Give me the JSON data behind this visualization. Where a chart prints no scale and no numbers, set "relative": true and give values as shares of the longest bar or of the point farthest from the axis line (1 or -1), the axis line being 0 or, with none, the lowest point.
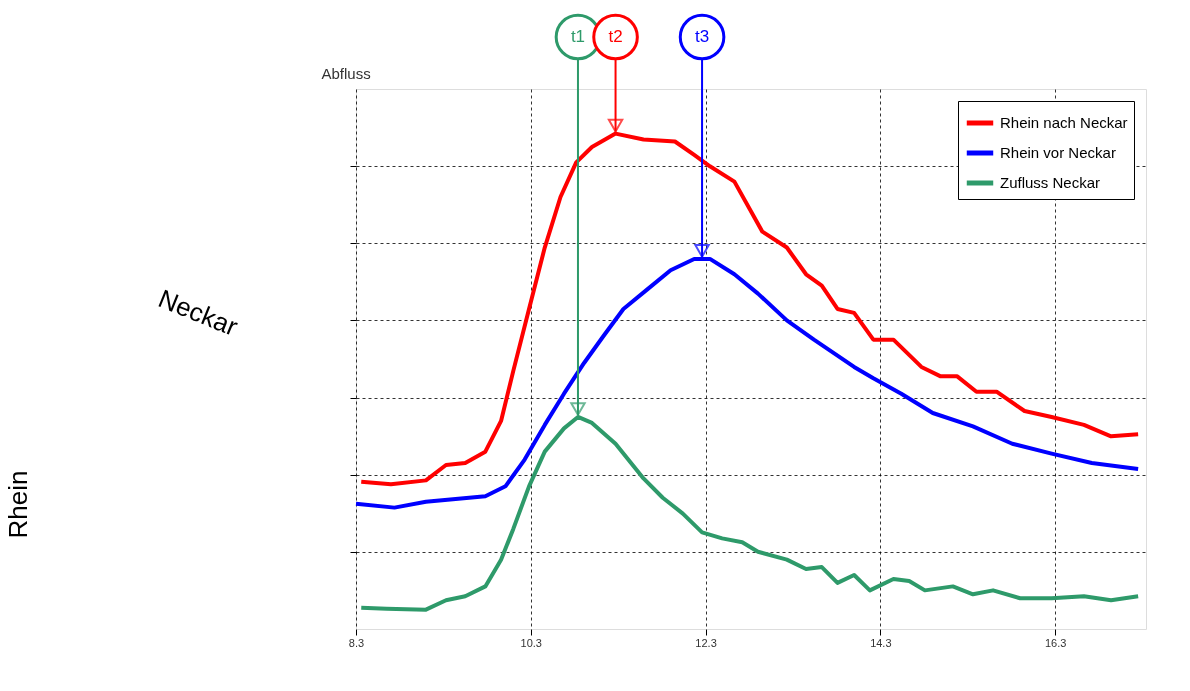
{
  "chart_data": {
    "type": "line",
    "relative": true,
    "ylabel": "Abfluss",
    "xlim": [
      8.3,
      17.34
    ],
    "xticks": [
      8.3,
      10.3,
      12.3,
      14.3,
      16.3
    ],
    "grid": true,
    "legend": "top right",
    "line_style": "solid",
    "marker": "none",
    "series": [
      {
        "name": "Rhein nach Neckar",
        "color": "#ff0000",
        "x": [
          8.36,
          8.7,
          9.1,
          9.33,
          9.55,
          9.78,
          9.96,
          10.1,
          10.28,
          10.46,
          10.64,
          10.82,
          11.0,
          11.27,
          11.59,
          11.95,
          12.17,
          12.35,
          12.63,
          12.95,
          13.23,
          13.45,
          13.63,
          13.81,
          14.0,
          14.22,
          14.45,
          14.77,
          14.99,
          15.18,
          15.4,
          15.63,
          15.95,
          16.26,
          16.63,
          16.94,
          17.25
        ],
        "values": [
          0.297,
          0.292,
          0.3,
          0.331,
          0.335,
          0.358,
          0.42,
          0.521,
          0.646,
          0.77,
          0.872,
          0.942,
          0.973,
          1.0,
          0.988,
          0.984,
          0.957,
          0.934,
          0.903,
          0.802,
          0.77,
          0.716,
          0.693,
          0.646,
          0.638,
          0.584,
          0.584,
          0.529,
          0.51,
          0.51,
          0.479,
          0.479,
          0.44,
          0.428,
          0.412,
          0.389,
          0.393
        ]
      },
      {
        "name": "Rhein vor Neckar",
        "color": "#0000ff",
        "x": [
          8.3,
          8.74,
          9.1,
          9.78,
          10.01,
          10.23,
          10.46,
          10.68,
          10.91,
          11.13,
          11.36,
          11.63,
          11.9,
          12.17,
          12.35,
          12.63,
          12.9,
          13.23,
          13.54,
          14.0,
          14.22,
          14.54,
          14.9,
          15.36,
          15.81,
          16.26,
          16.72,
          17.25
        ],
        "values": [
          0.253,
          0.245,
          0.257,
          0.268,
          0.288,
          0.342,
          0.412,
          0.475,
          0.537,
          0.591,
          0.646,
          0.685,
          0.724,
          0.747,
          0.747,
          0.716,
          0.677,
          0.623,
          0.584,
          0.529,
          0.506,
          0.475,
          0.436,
          0.409,
          0.374,
          0.354,
          0.335,
          0.323
        ]
      },
      {
        "name": "Zufluss Neckar",
        "color": "#2e9a6a",
        "x": [
          8.36,
          8.65,
          9.1,
          9.33,
          9.55,
          9.78,
          9.96,
          10.1,
          10.28,
          10.46,
          10.68,
          10.84,
          11.0,
          11.27,
          11.59,
          11.81,
          12.04,
          12.26,
          12.49,
          12.72,
          12.9,
          13.23,
          13.45,
          13.63,
          13.81,
          14.0,
          14.18,
          14.45,
          14.63,
          14.81,
          15.13,
          15.36,
          15.59,
          15.9,
          16.26,
          16.63,
          16.94,
          17.25
        ],
        "values": [
          0.043,
          0.041,
          0.039,
          0.058,
          0.066,
          0.086,
          0.14,
          0.202,
          0.288,
          0.358,
          0.405,
          0.428,
          0.416,
          0.374,
          0.304,
          0.265,
          0.233,
          0.195,
          0.183,
          0.175,
          0.156,
          0.14,
          0.121,
          0.125,
          0.093,
          0.109,
          0.078,
          0.101,
          0.097,
          0.078,
          0.086,
          0.07,
          0.078,
          0.062,
          0.062,
          0.066,
          0.058,
          0.066
        ]
      }
    ],
    "annotations": [
      "Rhein",
      "Neckar",
      {
        "text": "t1",
        "x": 10.84,
        "y": 0.428
      },
      {
        "text": "t2",
        "x": 11.27,
        "y": 1.0
      },
      {
        "text": "t3",
        "x": 12.26,
        "y": 0.747
      }
    ]
  }
}
